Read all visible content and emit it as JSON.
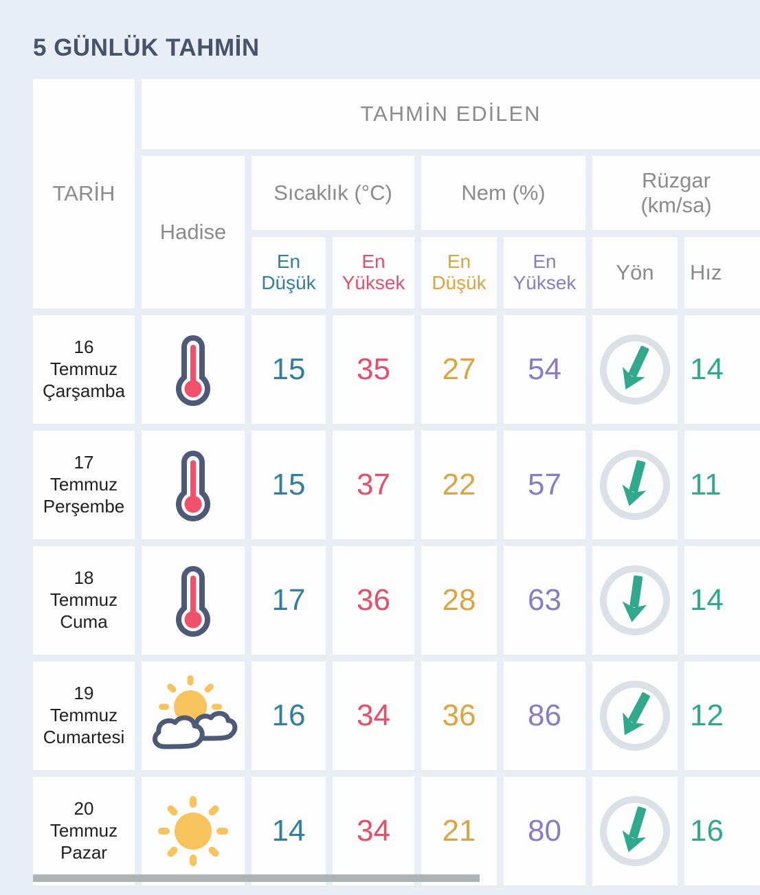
{
  "page": {
    "title": "5 GÜNLÜK TAHMİN"
  },
  "theme": {
    "page_bg": "#e8eef3",
    "cell_bg": "#fdfdfe",
    "title": "#46536b",
    "gray": "#8b8b8b",
    "teal": "#2e7fa0",
    "pink": "#e44f69",
    "gold": "#dba43f",
    "purple": "#8a7cc4",
    "green": "#2fa88c",
    "dark_icon": "#4d5a75",
    "pink_icon": "#f0506a",
    "sun": "#f6c35d",
    "ring": "#dce1e7",
    "date_text": "#1f1f1f",
    "thumb": "#adb2b7"
  },
  "table": {
    "headers": {
      "tarih": "TARİH",
      "tahmin_edilen": "TAHMİN EDİLEN",
      "hadise": "Hadise",
      "sicaklik": "Sıcaklık (°C)",
      "nem": "Nem (%)",
      "ruzgar_line1": "Rüzgar",
      "ruzgar_line2": "(km/sa)",
      "temp_min": "En Düşük",
      "temp_max": "En Yüksek",
      "hum_min": "En Düşük",
      "hum_max": "En Yüksek",
      "yon": "Yön",
      "hiz": "Hız"
    },
    "rows": [
      {
        "day": "16",
        "month": "Temmuz",
        "weekday": "Çarşamba",
        "condition": "thermometer-icon",
        "temp_min": "15",
        "temp_max": "35",
        "hum_min": "27",
        "hum_max": "54",
        "wind_dir_deg": 25,
        "wind_speed": "14"
      },
      {
        "day": "17",
        "month": "Temmuz",
        "weekday": "Perşembe",
        "condition": "thermometer-icon",
        "temp_min": "15",
        "temp_max": "37",
        "hum_min": "22",
        "hum_max": "57",
        "wind_dir_deg": 15,
        "wind_speed": "11"
      },
      {
        "day": "18",
        "month": "Temmuz",
        "weekday": "Cuma",
        "condition": "thermometer-icon",
        "temp_min": "17",
        "temp_max": "36",
        "hum_min": "28",
        "hum_max": "63",
        "wind_dir_deg": 8,
        "wind_speed": "14"
      },
      {
        "day": "19",
        "month": "Temmuz",
        "weekday": "Cumartesi",
        "condition": "sun-behind-clouds-icon",
        "temp_min": "16",
        "temp_max": "34",
        "hum_min": "36",
        "hum_max": "86",
        "wind_dir_deg": 28,
        "wind_speed": "12"
      },
      {
        "day": "20",
        "month": "Temmuz",
        "weekday": "Pazar",
        "condition": "sun-icon",
        "temp_min": "14",
        "temp_max": "34",
        "hum_min": "21",
        "hum_max": "80",
        "wind_dir_deg": 17,
        "wind_speed": "16"
      }
    ]
  }
}
